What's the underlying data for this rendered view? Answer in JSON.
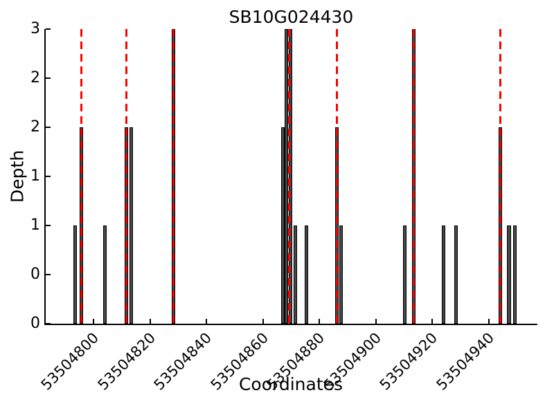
{
  "chart_data": {
    "type": "bar",
    "title": "SB10G024430",
    "xlabel": "Coordinates",
    "ylabel": "Depth",
    "xlim": [
      53504783,
      53504957
    ],
    "ylim": [
      0,
      3
    ],
    "grid": false,
    "legend": "none",
    "x_ticks": [
      {
        "value": 53504800,
        "label": "53504800"
      },
      {
        "value": 53504820,
        "label": "53504820"
      },
      {
        "value": 53504840,
        "label": "53504840"
      },
      {
        "value": 53504860,
        "label": "53504860"
      },
      {
        "value": 53504880,
        "label": "53504880"
      },
      {
        "value": 53504900,
        "label": "53504900"
      },
      {
        "value": 53504920,
        "label": "53504920"
      },
      {
        "value": 53504940,
        "label": "53504940"
      }
    ],
    "y_ticks": [
      {
        "value": 3,
        "label": "3"
      },
      {
        "value": 2.5,
        "label": "2"
      },
      {
        "value": 2,
        "label": "2"
      },
      {
        "value": 1.5,
        "label": "1"
      },
      {
        "value": 1,
        "label": "1"
      },
      {
        "value": 0.5,
        "label": "0"
      },
      {
        "value": 0,
        "label": "0"
      }
    ],
    "bar_width_units": 1.3,
    "bars": [
      {
        "x": 53504793.4,
        "depth": 1
      },
      {
        "x": 53504795.7,
        "depth": 2
      },
      {
        "x": 53504803.9,
        "depth": 1
      },
      {
        "x": 53504811.5,
        "depth": 2
      },
      {
        "x": 53504813.4,
        "depth": 2
      },
      {
        "x": 53504828.3,
        "depth": 3
      },
      {
        "x": 53504867.1,
        "depth": 2
      },
      {
        "x": 53504868.3,
        "depth": 3
      },
      {
        "x": 53504869.8,
        "depth": 3
      },
      {
        "x": 53504871.4,
        "depth": 1
      },
      {
        "x": 53504875.4,
        "depth": 1
      },
      {
        "x": 53504886.1,
        "depth": 2
      },
      {
        "x": 53504887.6,
        "depth": 1
      },
      {
        "x": 53504910.2,
        "depth": 1
      },
      {
        "x": 53504913.4,
        "depth": 3
      },
      {
        "x": 53504924.0,
        "depth": 1
      },
      {
        "x": 53504928.5,
        "depth": 1
      },
      {
        "x": 53504944.1,
        "depth": 2
      },
      {
        "x": 53504947.2,
        "depth": 1
      },
      {
        "x": 53504949.3,
        "depth": 1
      }
    ],
    "highlight_lines_x": [
      53504795.7,
      53504811.5,
      53504828.3,
      53504869.3,
      53504886.1,
      53504913.4,
      53504944.1
    ],
    "colors": {
      "bar_fill": "#474747",
      "bar_edge": "#000000",
      "highlight_line": "#ff0000",
      "axis": "#000000",
      "background": "#ffffff"
    }
  }
}
